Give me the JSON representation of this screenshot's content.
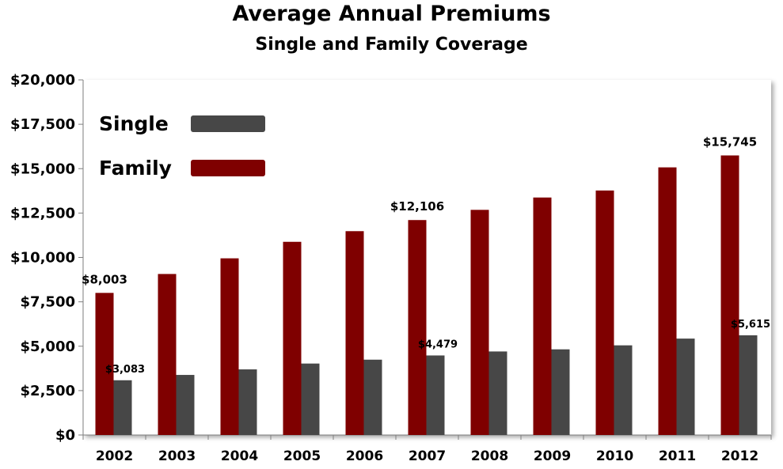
{
  "chart_data": {
    "type": "bar",
    "title": "Average Annual Premiums",
    "subtitle": "Single and Family Coverage",
    "xlabel": "",
    "ylabel": "",
    "categories": [
      "2002",
      "2003",
      "2004",
      "2005",
      "2006",
      "2007",
      "2008",
      "2009",
      "2010",
      "2011",
      "2012"
    ],
    "series": [
      {
        "name": "Family",
        "color": "#7f0000",
        "values": [
          8003,
          9068,
          9950,
          10880,
          11480,
          12106,
          12680,
          13375,
          13770,
          15073,
          15745
        ]
      },
      {
        "name": "Single",
        "color": "#474747",
        "values": [
          3083,
          3383,
          3695,
          4024,
          4242,
          4479,
          4704,
          4824,
          5049,
          5429,
          5615
        ]
      }
    ],
    "data_labels": [
      {
        "series": "Family",
        "category": "2002",
        "text": "$8,003"
      },
      {
        "series": "Single",
        "category": "2002",
        "text": "$3,083"
      },
      {
        "series": "Family",
        "category": "2007",
        "text": "$12,106"
      },
      {
        "series": "Single",
        "category": "2007",
        "text": "$4,479"
      },
      {
        "series": "Family",
        "category": "2012",
        "text": "$15,745"
      },
      {
        "series": "Single",
        "category": "2012",
        "text": "$5,615"
      }
    ],
    "ylim": [
      0,
      20000
    ],
    "yticks": [
      0,
      2500,
      5000,
      7500,
      10000,
      12500,
      15000,
      17500,
      20000
    ],
    "ytick_labels": [
      "$0",
      "$2,500",
      "$5,000",
      "$7,500",
      "$10,000",
      "$12,500",
      "$15,000",
      "$17,500",
      "$20,000"
    ],
    "legend": {
      "position": "top-left",
      "entries": [
        {
          "label": "Single",
          "color": "#474747"
        },
        {
          "label": "Family",
          "color": "#7f0000"
        }
      ]
    },
    "grid": false
  }
}
